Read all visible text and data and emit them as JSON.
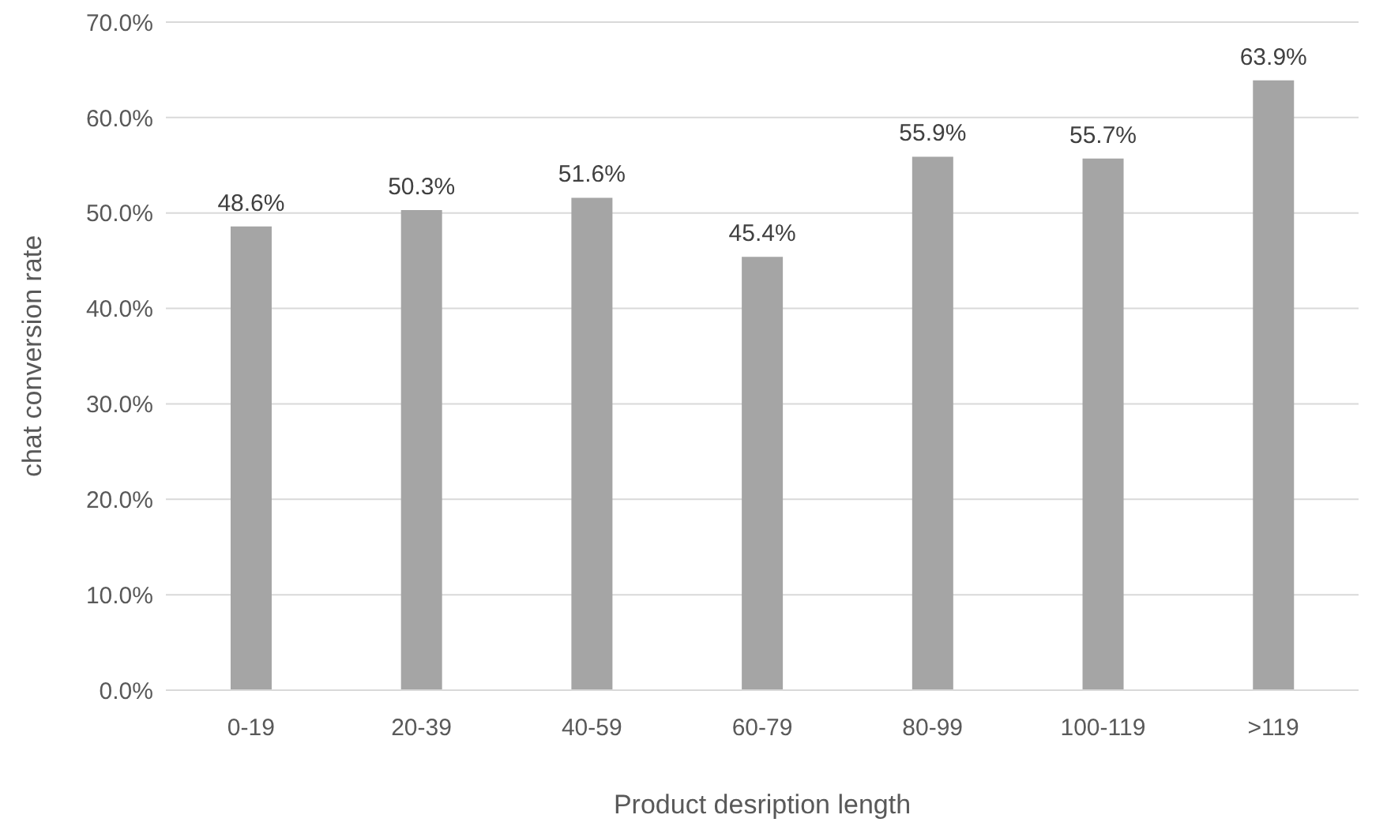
{
  "chart_data": {
    "type": "bar",
    "xlabel": "Product desription length",
    "ylabel": "chat conversion rate",
    "categories": [
      "0-19",
      "20-39",
      "40-59",
      "60-79",
      "80-99",
      "100-119",
      ">119"
    ],
    "values": [
      48.6,
      50.3,
      51.6,
      45.4,
      55.9,
      55.7,
      63.9
    ],
    "value_labels": [
      "48.6%",
      "50.3%",
      "51.6%",
      "45.4%",
      "55.9%",
      "55.7%",
      "63.9%"
    ],
    "color": "#a5a5a5",
    "ylim": [
      0,
      70
    ],
    "yticks": [
      {
        "value": 0,
        "label": "0.0%"
      },
      {
        "value": 10,
        "label": "10.0%"
      },
      {
        "value": 20,
        "label": "20.0%"
      },
      {
        "value": 30,
        "label": "30.0%"
      },
      {
        "value": 40,
        "label": "40.0%"
      },
      {
        "value": 50,
        "label": "50.0%"
      },
      {
        "value": 60,
        "label": "60.0%"
      },
      {
        "value": 70,
        "label": "70.0%"
      }
    ],
    "grid": "y"
  }
}
